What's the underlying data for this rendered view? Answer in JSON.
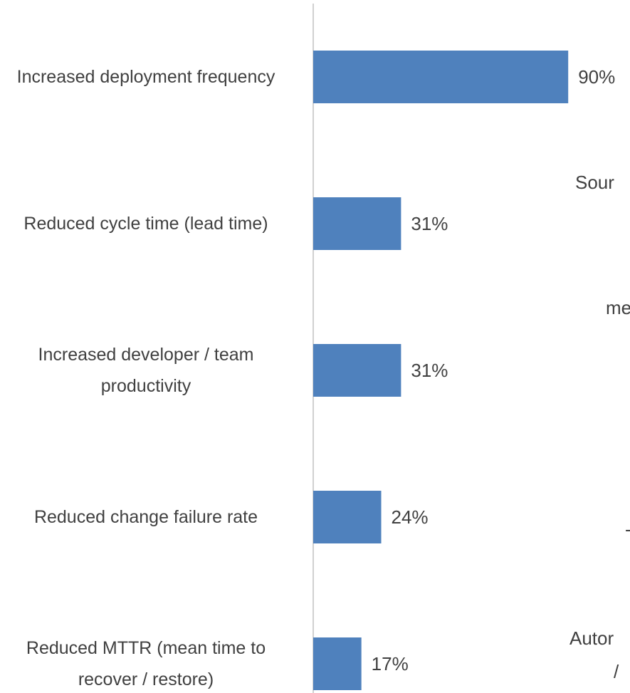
{
  "chart_data": {
    "type": "bar",
    "orientation": "horizontal",
    "categories": [
      "Increased deployment frequency",
      "Reduced cycle time (lead time)",
      "Increased developer / team productivity",
      "Reduced change failure rate",
      "Reduced MTTR (mean time to recover / restore)"
    ],
    "values": [
      90,
      31,
      31,
      24,
      17
    ],
    "value_labels": [
      "90%",
      "31%",
      "31%",
      "24%",
      "17%"
    ],
    "color": "#4f81bd",
    "xlim": [
      0,
      100
    ],
    "annotations": [
      "Sour",
      "me",
      "-",
      "Autor",
      "/"
    ]
  }
}
